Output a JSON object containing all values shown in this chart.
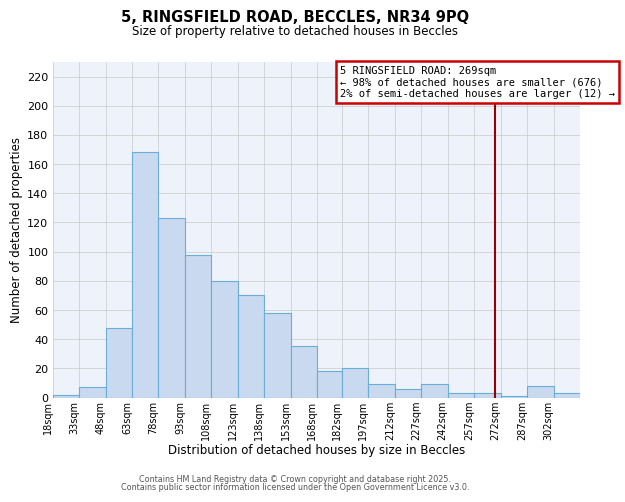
{
  "title": "5, RINGSFIELD ROAD, BECCLES, NR34 9PQ",
  "subtitle": "Size of property relative to detached houses in Beccles",
  "xlabel": "Distribution of detached houses by size in Beccles",
  "ylabel": "Number of detached properties",
  "bar_color": "#c8d9f0",
  "bar_edge_color": "#6aaed6",
  "background_color": "#eef3fb",
  "grid_color": "#c8c8c8",
  "bins": [
    18,
    33,
    48,
    63,
    78,
    93,
    108,
    123,
    138,
    153,
    168,
    182,
    197,
    212,
    227,
    242,
    257,
    272,
    287,
    302,
    317
  ],
  "bar_heights": [
    2,
    7,
    48,
    168,
    123,
    98,
    80,
    70,
    58,
    35,
    18,
    20,
    9,
    6,
    9,
    3,
    3,
    1,
    8,
    3
  ],
  "vline_x": 269,
  "vline_color": "#990000",
  "annotation_title": "5 RINGSFIELD ROAD: 269sqm",
  "annotation_line1": "← 98% of detached houses are smaller (676)",
  "annotation_line2": "2% of semi-detached houses are larger (12) →",
  "annotation_box_color": "#ffffff",
  "annotation_border_color": "#cc0000",
  "yticks": [
    0,
    20,
    40,
    60,
    80,
    100,
    120,
    140,
    160,
    180,
    200,
    220
  ],
  "ylim": [
    0,
    230
  ],
  "footnote1": "Contains HM Land Registry data © Crown copyright and database right 2025.",
  "footnote2": "Contains public sector information licensed under the Open Government Licence v3.0."
}
